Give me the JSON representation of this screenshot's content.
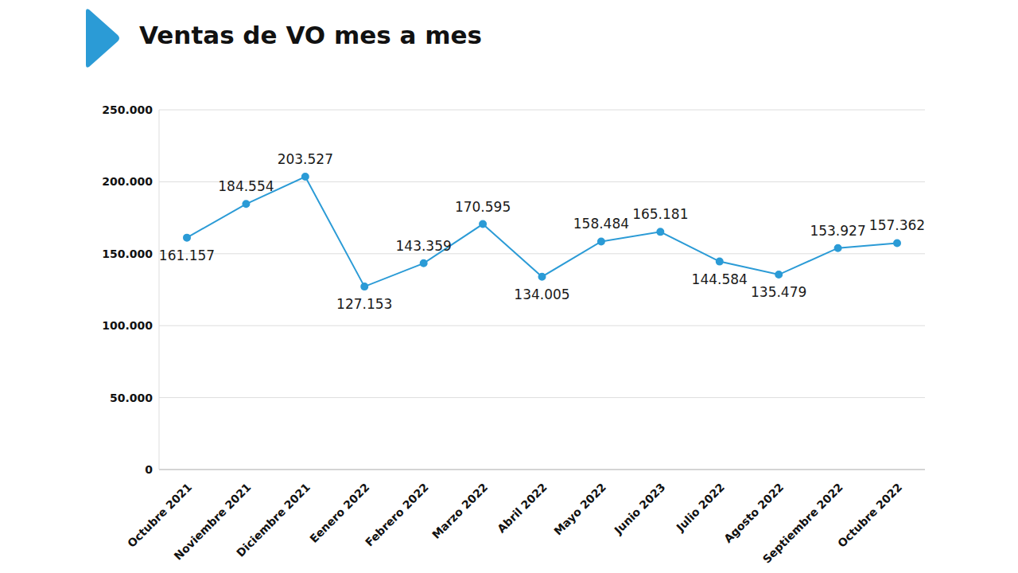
{
  "chart_data": {
    "type": "line",
    "title": "Ventas de VO mes a mes",
    "categories": [
      "Octubre 2021",
      "Noviembre 2021",
      "Diciembre 2021",
      "Eenero 2022",
      "Febrero 2022",
      "Marzo 2022",
      "Abril 2022",
      "Mayo 2022",
      "Junio 2023",
      "Julio 2022",
      "Agosto 2022",
      "Septiembre 2022",
      "Octubre 2022"
    ],
    "values": [
      161157,
      184554,
      203527,
      127153,
      143359,
      170595,
      134005,
      158484,
      165181,
      144584,
      135479,
      153927,
      157362
    ],
    "value_labels": [
      "161.157",
      "184.554",
      "203.527",
      "127.153",
      "143.359",
      "170.595",
      "134.005",
      "158.484",
      "165.181",
      "144.584",
      "135.479",
      "153.927",
      "157.362"
    ],
    "color": "#2b9bd6",
    "marker": "circle",
    "data_labels": true,
    "grid": true,
    "ylim": [
      0,
      250000
    ],
    "yticks": [
      0,
      {
        "value": 50000,
        "label": "50.000"
      },
      {
        "value": 100000,
        "label": "100.000"
      },
      {
        "value": 150000,
        "label": "150.000"
      },
      {
        "value": 200000,
        "label": "200.000"
      },
      {
        "value": 250000,
        "label": "250.000"
      }
    ]
  }
}
